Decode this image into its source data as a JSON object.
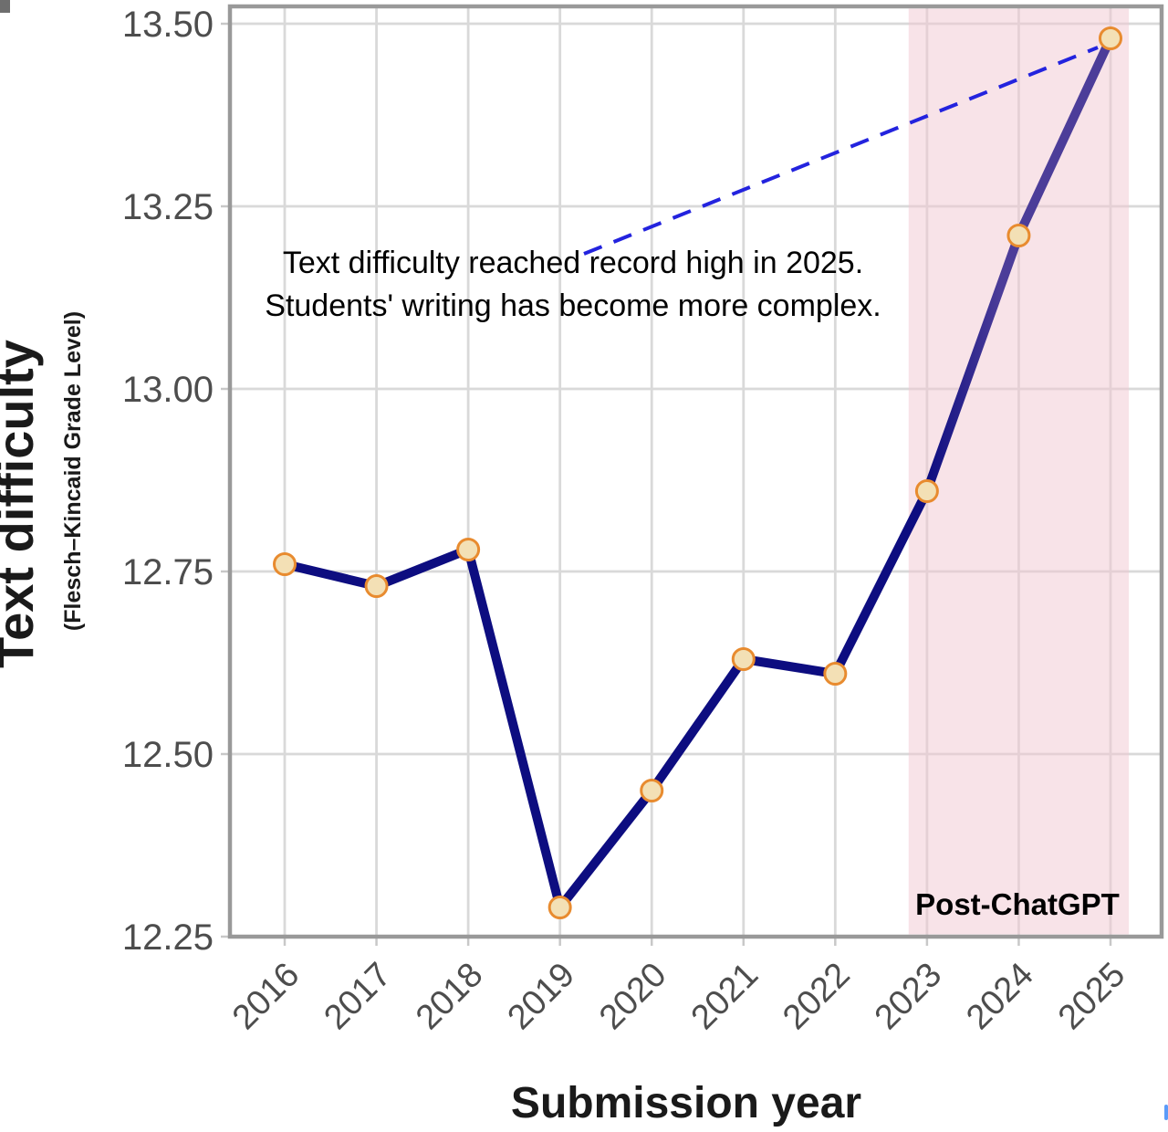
{
  "figure": {
    "y_axis_title": "Text difficulty",
    "y_axis_subtitle": "(Flesch–Kincaid Grade Level)",
    "x_axis_title": "Submission year",
    "annotation_line1": "Text difficulty reached record high in 2025.",
    "annotation_line2": "Students' writing has become more complex.",
    "shade_label": "Post-ChatGPT"
  },
  "chart_data": {
    "type": "line",
    "title": "",
    "categories": [
      "2016",
      "2017",
      "2018",
      "2019",
      "2020",
      "2021",
      "2022",
      "2023",
      "2024",
      "2025"
    ],
    "series": [
      {
        "name": "Text difficulty (Flesch–Kincaid Grade Level)",
        "values": [
          12.76,
          12.73,
          12.78,
          12.29,
          12.45,
          12.63,
          12.61,
          12.86,
          13.21,
          13.48
        ]
      }
    ],
    "xlabel": "Submission year",
    "ylabel": "Text difficulty (Flesch–Kincaid Grade Level)",
    "ylim": [
      12.25,
      13.5
    ],
    "yticks": [
      "12.25",
      "12.50",
      "12.75",
      "13.00",
      "13.25",
      "13.50"
    ],
    "grid": true,
    "legend_position": "none",
    "shaded_region": {
      "from_year": 2022.8,
      "to_year": 2025.2,
      "label": "Post-ChatGPT"
    },
    "annotation": {
      "text": [
        "Text difficulty reached record high in 2025.",
        "Students' writing has become more complex."
      ],
      "points_to_year": "2025"
    },
    "colors": {
      "line_pre_chatgpt": "#0D0D80",
      "line_post_chatgpt": "#4C3D99",
      "marker_fill": "#F3E0B5",
      "marker_stroke": "#E88B2F",
      "shade_fill_rgba": "rgba(242,199,210,0.5)",
      "dashed_annotation_line": "#2323DE",
      "gridline": "#D9D9D9",
      "tick_mark": "#C8C8C8",
      "panel_border": "#999999",
      "axis_text": "#4D4D4D",
      "title_text": "#000000"
    }
  }
}
